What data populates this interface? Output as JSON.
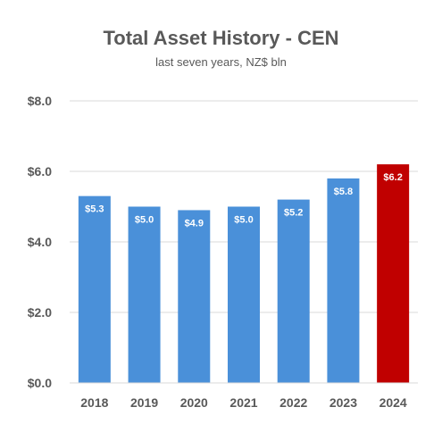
{
  "chart_data": {
    "type": "bar",
    "title": "Total Asset History - CEN",
    "subtitle": "last seven years, NZ$ bln",
    "categories": [
      "2018",
      "2019",
      "2020",
      "2021",
      "2022",
      "2023",
      "2024"
    ],
    "values": [
      5.3,
      5.0,
      4.9,
      5.0,
      5.2,
      5.8,
      6.2
    ],
    "data_labels": [
      "$5.3",
      "$5.0",
      "$4.9",
      "$5.0",
      "$5.2",
      "$5.8",
      "$6.2"
    ],
    "bar_colors": [
      "#4A90D9",
      "#4A90D9",
      "#4A90D9",
      "#4A90D9",
      "#4A90D9",
      "#4A90D9",
      "#C00000"
    ],
    "ylim": [
      0,
      8
    ],
    "yticks": [
      0,
      2,
      4,
      6,
      8
    ],
    "ytick_labels": [
      "$0.0",
      "$2.0",
      "$4.0",
      "$6.0",
      "$8.0"
    ],
    "grid": true,
    "gridline_color": "#D9D9D9",
    "xlabel": "",
    "ylabel": ""
  }
}
